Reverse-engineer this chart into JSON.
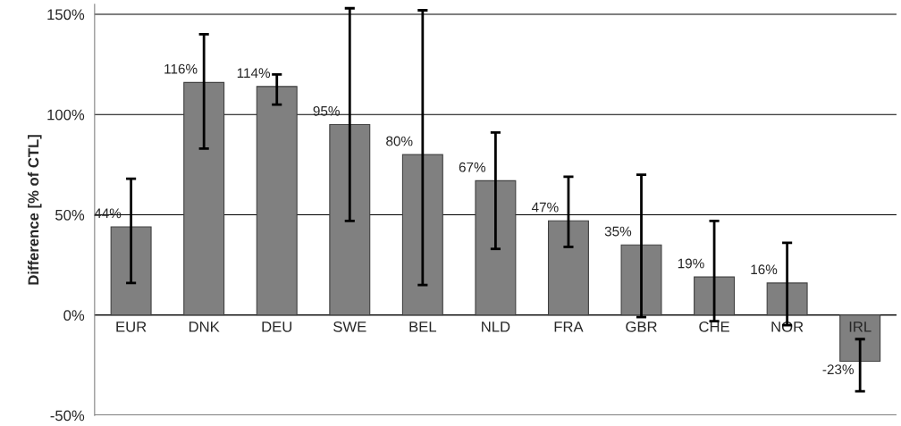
{
  "chart_data": {
    "type": "bar",
    "ylabel": "Difference [% of CTL]",
    "categories": [
      "EUR",
      "DNK",
      "DEU",
      "SWE",
      "BEL",
      "NLD",
      "FRA",
      "GBR",
      "CHE",
      "NOR",
      "IRL"
    ],
    "values": [
      44,
      116,
      114,
      95,
      80,
      67,
      47,
      35,
      19,
      16,
      -23
    ],
    "value_labels": [
      "44%",
      "116%",
      "114%",
      "95%",
      "80%",
      "67%",
      "47%",
      "35%",
      "19%",
      "16%",
      "-23%"
    ],
    "errors": [
      [
        16,
        68
      ],
      [
        83,
        140
      ],
      [
        105,
        120
      ],
      [
        47,
        153
      ],
      [
        15,
        152
      ],
      [
        33,
        91
      ],
      [
        34,
        69
      ],
      [
        -1,
        70
      ],
      [
        -3,
        47
      ],
      [
        -5,
        36
      ],
      [
        -38,
        -12
      ]
    ],
    "color": "#808080",
    "ylim": [
      -50,
      155
    ],
    "yticks": [
      {
        "value": -50,
        "label": "-50%"
      },
      {
        "value": 0,
        "label": "0%"
      },
      {
        "value": 50,
        "label": "50%"
      },
      {
        "value": 100,
        "label": "100%"
      },
      {
        "value": 150,
        "label": "150%"
      }
    ],
    "grid": "y"
  }
}
